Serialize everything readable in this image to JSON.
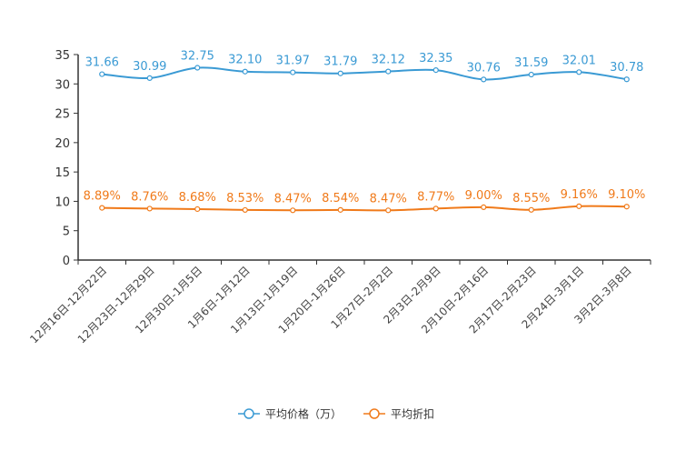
{
  "chart_data": {
    "type": "line",
    "title": "",
    "xlabel": "",
    "ylabel": "",
    "ylim": [
      0,
      35
    ],
    "yticks": [
      0,
      5,
      10,
      15,
      20,
      25,
      30,
      35
    ],
    "grid": false,
    "legend_position": "bottom-center",
    "categories": [
      "12月16日-12月22日",
      "12月23日-12月29日",
      "12月30日-1月5日",
      "1月6日-1月12日",
      "1月13日-1月19日",
      "1月20日-1月26日",
      "1月27日-2月2日",
      "2月3日-2月9日",
      "2月10日-2月16日",
      "2月17日-2月23日",
      "2月24日-3月1日",
      "3月2日-3月8日"
    ],
    "series": [
      {
        "name": "平均价格（万）",
        "color": "#3a9ad4",
        "values": [
          31.66,
          30.99,
          32.75,
          32.1,
          31.97,
          31.79,
          32.12,
          32.35,
          30.76,
          31.59,
          32.01,
          30.78
        ],
        "labels": [
          "31.66",
          "30.99",
          "32.75",
          "32.10",
          "31.97",
          "31.79",
          "32.12",
          "32.35",
          "30.76",
          "31.59",
          "32.01",
          "30.78"
        ]
      },
      {
        "name": "平均折扣",
        "color": "#f07a1a",
        "values": [
          8.89,
          8.76,
          8.68,
          8.53,
          8.47,
          8.54,
          8.47,
          8.77,
          9.0,
          8.55,
          9.16,
          9.1
        ],
        "labels": [
          "8.89%",
          "8.76%",
          "8.68%",
          "8.53%",
          "8.47%",
          "8.54%",
          "8.47%",
          "8.77%",
          "9.00%",
          "8.55%",
          "9.16%",
          "9.10%"
        ]
      }
    ]
  }
}
